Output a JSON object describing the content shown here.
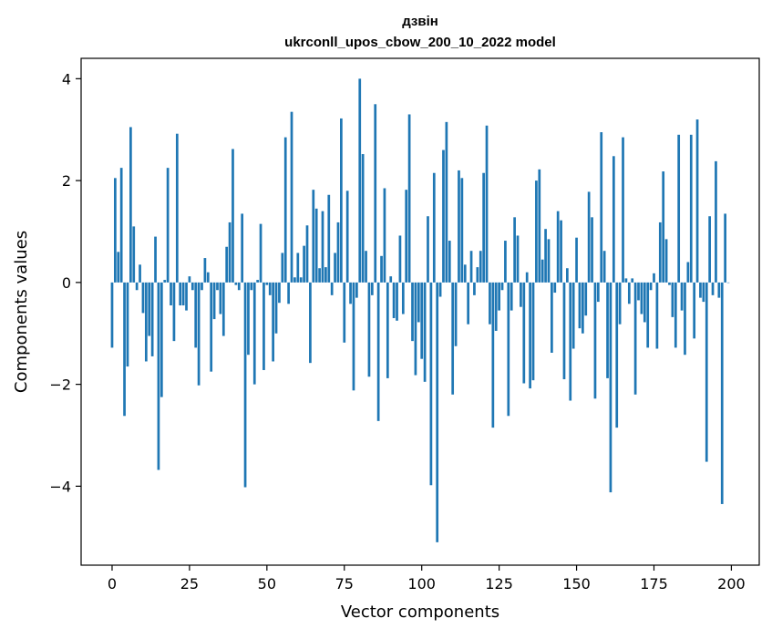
{
  "chart_data": {
    "type": "bar",
    "title": "дзвін",
    "subtitle": "ukrconll_upos_cbow_200_10_2022 model",
    "xlabel": "Vector components",
    "ylabel": "Components values",
    "xlim": [
      -10,
      209
    ],
    "ylim": [
      -5.55,
      4.4
    ],
    "xticks": [
      0,
      25,
      50,
      75,
      100,
      125,
      150,
      175,
      200
    ],
    "xtick_labels": [
      "0",
      "25",
      "50",
      "75",
      "100",
      "125",
      "150",
      "175",
      "200"
    ],
    "yticks": [
      -4,
      -2,
      0,
      2,
      4
    ],
    "ytick_labels": [
      "−4",
      "−2",
      "0",
      "2",
      "4"
    ],
    "grid": false,
    "bar_color": "#1f77b4",
    "categories": [
      0,
      1,
      2,
      3,
      4,
      5,
      6,
      7,
      8,
      9,
      10,
      11,
      12,
      13,
      14,
      15,
      16,
      17,
      18,
      19,
      20,
      21,
      22,
      23,
      24,
      25,
      26,
      27,
      28,
      29,
      30,
      31,
      32,
      33,
      34,
      35,
      36,
      37,
      38,
      39,
      40,
      41,
      42,
      43,
      44,
      45,
      46,
      47,
      48,
      49,
      50,
      51,
      52,
      53,
      54,
      55,
      56,
      57,
      58,
      59,
      60,
      61,
      62,
      63,
      64,
      65,
      66,
      67,
      68,
      69,
      70,
      71,
      72,
      73,
      74,
      75,
      76,
      77,
      78,
      79,
      80,
      81,
      82,
      83,
      84,
      85,
      86,
      87,
      88,
      89,
      90,
      91,
      92,
      93,
      94,
      95,
      96,
      97,
      98,
      99,
      100,
      101,
      102,
      103,
      104,
      105,
      106,
      107,
      108,
      109,
      110,
      111,
      112,
      113,
      114,
      115,
      116,
      117,
      118,
      119,
      120,
      121,
      122,
      123,
      124,
      125,
      126,
      127,
      128,
      129,
      130,
      131,
      132,
      133,
      134,
      135,
      136,
      137,
      138,
      139,
      140,
      141,
      142,
      143,
      144,
      145,
      146,
      147,
      148,
      149,
      150,
      151,
      152,
      153,
      154,
      155,
      156,
      157,
      158,
      159,
      160,
      161,
      162,
      163,
      164,
      165,
      166,
      167,
      168,
      169,
      170,
      171,
      172,
      173,
      174,
      175,
      176,
      177,
      178,
      179,
      180,
      181,
      182,
      183,
      184,
      185,
      186,
      187,
      188,
      189,
      190,
      191,
      192,
      193,
      194,
      195,
      196,
      197,
      198,
      199
    ],
    "values": [
      -1.28,
      2.05,
      0.6,
      2.25,
      -2.62,
      -1.65,
      3.05,
      1.1,
      -0.15,
      0.35,
      -0.6,
      -1.55,
      -1.05,
      -1.45,
      0.9,
      -3.68,
      -2.25,
      0.05,
      2.25,
      -0.45,
      -1.15,
      2.92,
      -0.45,
      -0.45,
      -0.55,
      0.12,
      -0.15,
      -1.28,
      -2.02,
      -0.15,
      0.48,
      0.2,
      -1.75,
      -0.72,
      -0.15,
      -0.62,
      -1.05,
      0.7,
      1.18,
      2.62,
      -0.05,
      -0.15,
      1.35,
      -4.02,
      -1.42,
      -0.15,
      -2.0,
      0.05,
      1.15,
      -1.72,
      -0.05,
      -0.25,
      -1.55,
      -1.0,
      -0.4,
      0.58,
      2.85,
      -0.42,
      3.35,
      0.1,
      0.58,
      0.1,
      0.72,
      1.12,
      -1.58,
      1.82,
      1.45,
      0.28,
      1.4,
      0.3,
      1.72,
      -0.25,
      0.58,
      1.18,
      3.22,
      -1.18,
      1.8,
      -0.42,
      -2.12,
      -0.3,
      4.0,
      2.52,
      0.62,
      -1.85,
      -0.25,
      3.5,
      -2.72,
      0.52,
      1.85,
      -1.88,
      0.12,
      -0.7,
      -0.75,
      0.92,
      -0.62,
      1.82,
      3.3,
      -1.15,
      -1.82,
      -0.78,
      -1.5,
      -1.95,
      1.3,
      -3.98,
      2.15,
      -5.1,
      -0.28,
      2.6,
      3.15,
      0.82,
      -2.2,
      -1.25,
      2.2,
      2.05,
      0.35,
      -0.82,
      0.62,
      -0.25,
      0.3,
      0.62,
      2.15,
      3.08,
      -0.82,
      -2.85,
      -0.95,
      -0.55,
      -0.15,
      0.82,
      -2.62,
      -0.55,
      1.28,
      0.92,
      -0.48,
      -1.98,
      0.2,
      -2.08,
      -1.92,
      2.0,
      2.22,
      0.45,
      1.05,
      0.85,
      -1.38,
      -0.2,
      1.4,
      1.22,
      -1.9,
      0.28,
      -2.32,
      -1.3,
      0.88,
      -0.9,
      -1.0,
      -0.65,
      1.78,
      1.28,
      -2.28,
      -0.38,
      2.95,
      0.62,
      -1.88,
      -4.12,
      2.48,
      -2.85,
      -0.82,
      2.85,
      0.08,
      -0.42,
      0.08,
      -2.2,
      -0.35,
      -0.62,
      -0.78,
      -1.28,
      -0.15,
      0.18,
      -1.3,
      1.18,
      2.18,
      0.85,
      -0.05,
      -0.68,
      -1.28,
      2.9,
      -0.55,
      -1.42,
      0.4,
      2.9,
      -1.1,
      3.2,
      -0.3,
      -0.38,
      -3.52,
      1.3,
      -0.25,
      2.38,
      -0.3,
      -4.35,
      1.35,
      0.0
    ]
  }
}
